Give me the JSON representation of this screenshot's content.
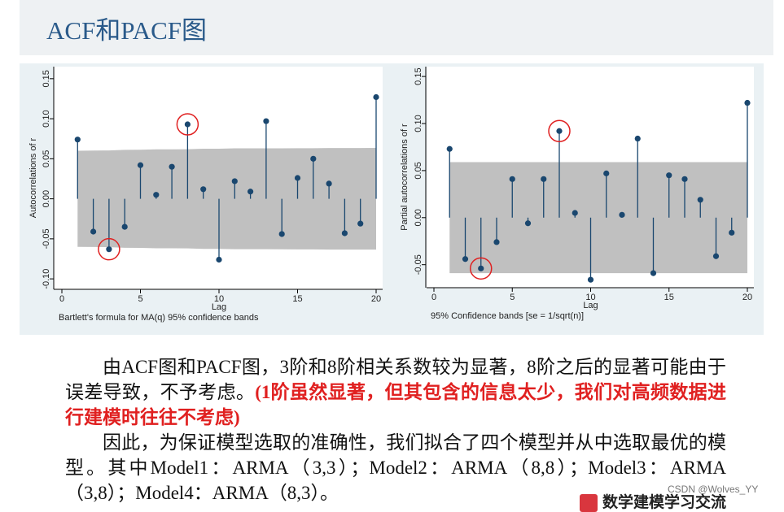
{
  "header": {
    "title": "ACF和PACF图"
  },
  "chart_data": [
    {
      "type": "stem",
      "ylabel": "Autocorrelations of r",
      "xlabel": "Lag",
      "note": "Bartlett's formula for MA(q) 95% confidence bands",
      "x": [
        1,
        2,
        3,
        4,
        5,
        6,
        7,
        8,
        9,
        10,
        11,
        12,
        13,
        14,
        15,
        16,
        17,
        18,
        19,
        20
      ],
      "values": [
        0.074,
        -0.041,
        -0.063,
        -0.035,
        0.042,
        0.005,
        0.04,
        0.093,
        0.012,
        -0.076,
        0.022,
        0.009,
        0.097,
        -0.044,
        0.026,
        0.05,
        0.019,
        -0.043,
        -0.031,
        0.127
      ],
      "band_upper": [
        0.06,
        0.0602,
        0.0604,
        0.0612,
        0.0613,
        0.0618,
        0.0618,
        0.0619,
        0.0625,
        0.0625,
        0.063,
        0.063,
        0.063,
        0.0631,
        0.0632,
        0.0632,
        0.0634,
        0.0634,
        0.0634,
        0.0635
      ],
      "band_lower": [
        -0.06,
        -0.0602,
        -0.0604,
        -0.0612,
        -0.0613,
        -0.0618,
        -0.0618,
        -0.0619,
        -0.0625,
        -0.0625,
        -0.063,
        -0.063,
        -0.063,
        -0.0631,
        -0.0632,
        -0.0632,
        -0.0634,
        -0.0634,
        -0.0634,
        -0.0635
      ],
      "highlight_lags": [
        3,
        8
      ],
      "highlight_color": "#e02020",
      "color": "#1a476f",
      "band_color": "#c0c0c0",
      "xlim": [
        0,
        20
      ],
      "xticks": [
        0,
        5,
        10,
        15,
        20
      ],
      "ylim": [
        -0.109,
        0.161
      ],
      "yticks": [
        {
          "value": -0.1,
          "label": "-0.10"
        },
        {
          "value": -0.05,
          "label": "-0.05"
        },
        {
          "value": 0,
          "label": "0.00"
        },
        {
          "value": 0.05,
          "label": "0.05"
        },
        {
          "value": 0.1,
          "label": "0.10"
        },
        {
          "value": 0.15,
          "label": "0.15"
        }
      ]
    },
    {
      "type": "stem",
      "ylabel": "Partial autocorrelations of r",
      "xlabel": "Lag",
      "note": "95% Confidence bands [se = 1/sqrt(n)]",
      "x": [
        1,
        2,
        3,
        4,
        5,
        6,
        7,
        8,
        9,
        10,
        11,
        12,
        13,
        14,
        15,
        16,
        17,
        18,
        19,
        20
      ],
      "values": [
        0.073,
        -0.044,
        -0.054,
        -0.026,
        0.041,
        -0.006,
        0.041,
        0.092,
        0.005,
        -0.066,
        0.047,
        0.003,
        0.084,
        -0.059,
        0.045,
        0.041,
        0.019,
        -0.041,
        -0.016,
        0.122
      ],
      "confidence_band": [
        -0.059,
        0.059
      ],
      "highlight_lags": [
        3,
        8
      ],
      "highlight_color": "#e02020",
      "color": "#1a476f",
      "band_color": "#c0c0c0",
      "xlim": [
        0,
        20
      ],
      "xticks": [
        0,
        5,
        10,
        15,
        20
      ],
      "ylim": [
        -0.071,
        0.157
      ],
      "yticks": [
        {
          "value": -0.05,
          "label": "-0.05"
        },
        {
          "value": 0,
          "label": "0.00"
        },
        {
          "value": 0.05,
          "label": "0.05"
        },
        {
          "value": 0.1,
          "label": "0.10"
        },
        {
          "value": 0.15,
          "label": "0.15"
        }
      ]
    }
  ],
  "body": {
    "paragraphs": [
      {
        "text": "由ACF图和PACF图，3阶和8阶相关系数较为显著，8阶之后的显著可能由于误差导致，不予考虑。",
        "note": "(1阶虽然显著，但其包含的信息太少，我们对高频数据进行建模时往往不考虑)"
      },
      {
        "text": "因此，为保证模型选取的准确性，我们拟合了四个模型并从中选取最优的模型。其中Model1：ARMA（3,3）；Model2：ARMA（8,8）；Model3：ARMA（3,8）；Model4：ARMA（8,3）。"
      }
    ]
  },
  "watermark": "CSDN @Wolves_YY",
  "logo": "数学建模学习交流"
}
